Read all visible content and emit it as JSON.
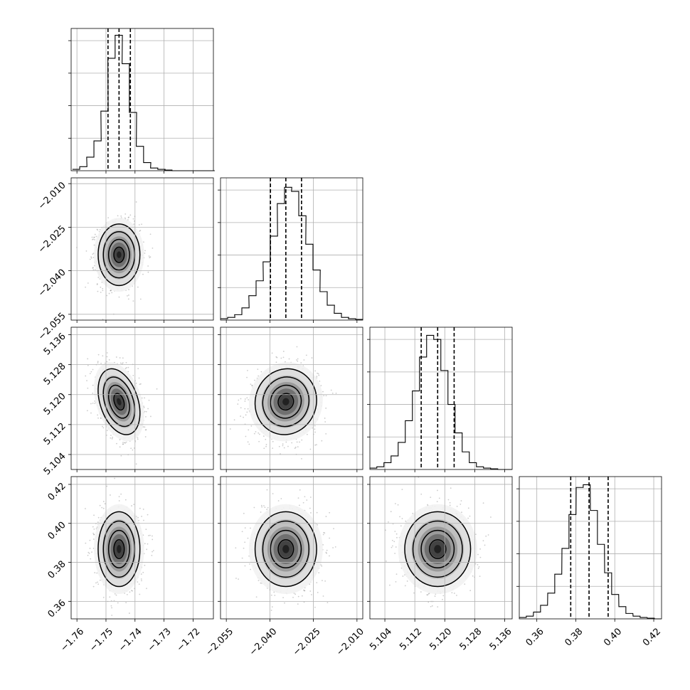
{
  "chart_data": {
    "type": "corner",
    "title": "",
    "n_params": 4,
    "params": [
      {
        "label": "",
        "range": [
          -1.762,
          -1.713
        ],
        "ticks": [
          -1.76,
          -1.75,
          -1.74,
          -1.73,
          -1.72
        ],
        "tick_labels": [
          "−1.76",
          "−1.75",
          "−1.74",
          "−1.73",
          "−1.72"
        ],
        "quantiles": [
          -1.7493,
          -1.7455,
          -1.7416
        ],
        "hist_x": [
          -1.7603,
          -1.7578,
          -1.7554,
          -1.7529,
          -1.7505,
          -1.7481,
          -1.7456,
          -1.7432,
          -1.7407,
          -1.7383,
          -1.7358,
          -1.7334,
          -1.7309,
          -1.7285,
          -1.726,
          -1.7236,
          -1.7211,
          -1.7187,
          -1.7162,
          -1.7138
        ],
        "hist_y": [
          0.01,
          0.03,
          0.1,
          0.22,
          0.44,
          0.83,
          1.0,
          0.79,
          0.43,
          0.18,
          0.06,
          0.02,
          0.01,
          0.005,
          0.0,
          0.0,
          0.0,
          0.0,
          0.0,
          0.0
        ]
      },
      {
        "label": "",
        "range": [
          -2.057,
          -2.008
        ],
        "ticks": [
          -2.055,
          -2.04,
          -2.025,
          -2.01
        ],
        "tick_labels": [
          "−2.055",
          "−2.040",
          "−2.025",
          "−2.010"
        ],
        "quantiles": [
          -2.0398,
          -2.0345,
          -2.0291
        ],
        "hist_x": [
          -2.0558,
          -2.0533,
          -2.0509,
          -2.0484,
          -2.046,
          -2.0435,
          -2.0411,
          -2.0386,
          -2.0362,
          -2.0337,
          -2.0313,
          -2.0288,
          -2.0264,
          -2.0239,
          -2.0215,
          -2.019,
          -2.0166,
          -2.0141,
          -2.0117,
          -2.0092
        ],
        "hist_y": [
          0.01,
          0.02,
          0.04,
          0.09,
          0.18,
          0.29,
          0.43,
          0.62,
          0.86,
          0.98,
          0.95,
          0.77,
          0.56,
          0.37,
          0.21,
          0.11,
          0.05,
          0.02,
          0.01,
          0.005
        ]
      },
      {
        "label": "",
        "range": [
          5.1,
          5.138
        ],
        "ticks": [
          5.104,
          5.112,
          5.12,
          5.128,
          5.136
        ],
        "tick_labels": [
          "5.104",
          "5.112",
          "5.120",
          "5.128",
          "5.136"
        ],
        "quantiles": [
          5.1137,
          5.1181,
          5.1225
        ],
        "hist_x": [
          5.1009,
          5.1028,
          5.1047,
          5.1066,
          5.1085,
          5.1104,
          5.1123,
          5.1142,
          5.1161,
          5.118,
          5.1199,
          5.1218,
          5.1237,
          5.1256,
          5.1275,
          5.1294,
          5.1313,
          5.1332,
          5.1351,
          5.137
        ],
        "hist_y": [
          0.01,
          0.02,
          0.05,
          0.1,
          0.2,
          0.36,
          0.58,
          0.83,
          0.99,
          0.96,
          0.73,
          0.48,
          0.27,
          0.13,
          0.05,
          0.02,
          0.01,
          0.005,
          0.0,
          0.0
        ]
      },
      {
        "label": "",
        "range": [
          0.351,
          0.424
        ],
        "ticks": [
          0.36,
          0.38,
          0.4,
          0.42
        ],
        "tick_labels": [
          "0.36",
          "0.38",
          "0.40",
          "0.42"
        ],
        "quantiles": [
          0.3774,
          0.3868,
          0.3966
        ],
        "hist_x": [
          0.3528,
          0.3564,
          0.3601,
          0.3637,
          0.3674,
          0.371,
          0.3747,
          0.3783,
          0.382,
          0.3856,
          0.3893,
          0.3929,
          0.3966,
          0.4002,
          0.4039,
          0.4075,
          0.4112,
          0.4148,
          0.4185,
          0.4221
        ],
        "hist_y": [
          0.01,
          0.02,
          0.05,
          0.1,
          0.19,
          0.33,
          0.52,
          0.77,
          0.97,
          0.99,
          0.8,
          0.55,
          0.34,
          0.18,
          0.09,
          0.04,
          0.02,
          0.01,
          0.005,
          0.0
        ]
      }
    ],
    "pairs": [
      {
        "x": 0,
        "y": 1,
        "mean": [
          -1.7455,
          -2.0345
        ],
        "sd": [
          0.0036,
          0.0053
        ],
        "corr": 0.0
      },
      {
        "x": 0,
        "y": 2,
        "mean": [
          -1.7455,
          5.1181
        ],
        "sd": [
          0.0036,
          0.0044
        ],
        "corr": -0.35
      },
      {
        "x": 1,
        "y": 2,
        "mean": [
          -2.0345,
          5.1181
        ],
        "sd": [
          0.0053,
          0.0044
        ],
        "corr": 0.05
      },
      {
        "x": 0,
        "y": 3,
        "mean": [
          -1.7455,
          0.3868
        ],
        "sd": [
          0.0036,
          0.0096
        ],
        "corr": 0.0
      },
      {
        "x": 1,
        "y": 3,
        "mean": [
          -2.0345,
          0.3868
        ],
        "sd": [
          0.0053,
          0.0096
        ],
        "corr": 0.0
      },
      {
        "x": 2,
        "y": 3,
        "mean": [
          5.1181,
          0.3868
        ],
        "sd": [
          0.0044,
          0.0096
        ],
        "corr": 0.0
      }
    ],
    "contour_sigma_levels": [
      0.5,
      1.0,
      1.5,
      2.0
    ],
    "grid": true
  }
}
